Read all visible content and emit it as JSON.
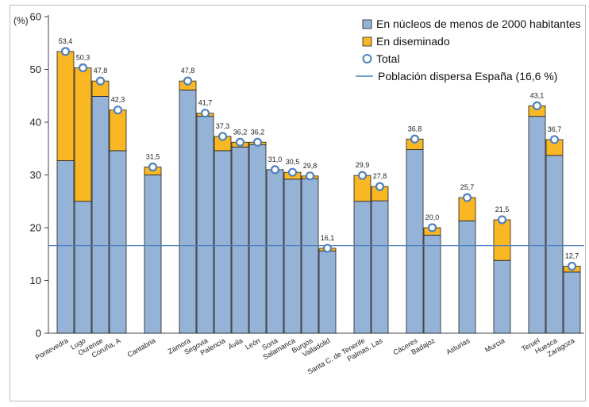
{
  "chart_data": {
    "type": "bar",
    "stacked": true,
    "y_unit": "(%)",
    "ylim": [
      0,
      60
    ],
    "yticks": [
      0,
      10,
      20,
      30,
      40,
      50,
      60
    ],
    "grid": false,
    "legend_position": "top-right",
    "categories": [
      {
        "label": "Pontevedra",
        "group": 1
      },
      {
        "label": "Lugo",
        "group": 1
      },
      {
        "label": "Ourense",
        "group": 1
      },
      {
        "label": "Coruña, A",
        "group": 1
      },
      {
        "label": "Cantabria",
        "group": 2
      },
      {
        "label": "Zamora",
        "group": 3
      },
      {
        "label": "Segovia",
        "group": 3
      },
      {
        "label": "Palencia",
        "group": 3
      },
      {
        "label": "Ávila",
        "group": 3
      },
      {
        "label": "León",
        "group": 3
      },
      {
        "label": "Soria",
        "group": 3
      },
      {
        "label": "Salamanca",
        "group": 3
      },
      {
        "label": "Burgos",
        "group": 3
      },
      {
        "label": "Valladolid",
        "group": 3
      },
      {
        "label": "Santa C. de Tenerife",
        "group": 4
      },
      {
        "label": "Palmas, Las",
        "group": 4
      },
      {
        "label": "Cáceres",
        "group": 5
      },
      {
        "label": "Badajoz",
        "group": 5
      },
      {
        "label": "Asturias",
        "group": 6
      },
      {
        "label": "Murcia",
        "group": 7
      },
      {
        "label": "Teruel",
        "group": 8
      },
      {
        "label": "Huesca",
        "group": 8
      },
      {
        "label": "Zaragoza",
        "group": 8
      }
    ],
    "series": [
      {
        "name": "En núcleos de menos de 2000 habitantes",
        "color": "#95b3d7",
        "values": [
          32.7,
          25.0,
          44.9,
          34.6,
          30.0,
          46.1,
          41.1,
          34.6,
          35.3,
          35.7,
          31.0,
          29.2,
          29.3,
          15.6,
          25.0,
          25.1,
          34.8,
          18.6,
          21.3,
          13.8,
          41.1,
          33.7,
          11.6
        ]
      },
      {
        "name": "En diseminado",
        "color": "#f9b723",
        "values": [
          20.7,
          25.3,
          2.9,
          7.7,
          1.5,
          1.7,
          0.6,
          2.7,
          0.9,
          0.5,
          0.0,
          1.3,
          0.5,
          0.5,
          4.9,
          2.7,
          2.0,
          1.4,
          4.4,
          7.7,
          2.0,
          3.0,
          1.1
        ]
      }
    ],
    "total": {
      "name": "Total",
      "values": [
        53.4,
        50.3,
        47.8,
        42.3,
        31.5,
        47.8,
        41.7,
        37.3,
        36.2,
        36.2,
        31.0,
        30.5,
        29.8,
        16.1,
        29.9,
        27.8,
        36.8,
        20.0,
        25.7,
        21.5,
        43.1,
        36.7,
        12.7
      ],
      "labels": [
        "53,4",
        "50,3",
        "47,8",
        "42,3",
        "31,5",
        "47,8",
        "41,7",
        "37,3",
        "36,2",
        "36,2",
        "31,0",
        "30,5",
        "29,8",
        "16,1",
        "29,9",
        "27,8",
        "36,8",
        "20,0",
        "25,7",
        "21,5",
        "43,1",
        "36,7",
        "12,7"
      ]
    },
    "reference_line": {
      "name": "Población dispersa España (16,6 %)",
      "value": 16.6,
      "color": "#4a7ebb"
    },
    "colors": {
      "total_marker_fill": "#ffffff",
      "total_marker_stroke": "#4f81bd",
      "bar_edge": "#1f1f1f"
    }
  }
}
